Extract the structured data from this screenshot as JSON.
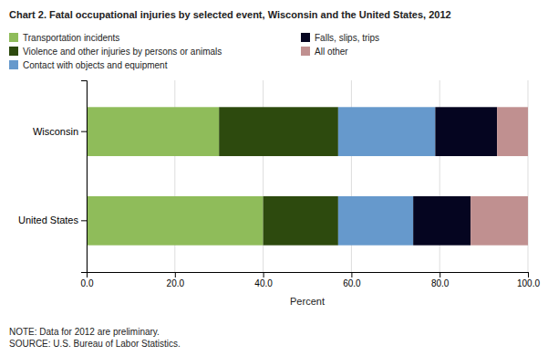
{
  "chart_data": {
    "type": "bar",
    "orientation": "horizontal",
    "stacked": true,
    "title": "Chart 2.  Fatal occupational injuries by selected event, Wisconsin and the United States, 2012",
    "categories": [
      "Wisconsin",
      "United States"
    ],
    "series": [
      {
        "name": "Transportation incidents",
        "values": [
          30.0,
          40.0
        ],
        "color": "#8fbc5a"
      },
      {
        "name": "Violence and other injuries by persons or animals",
        "values": [
          27.0,
          17.0
        ],
        "color": "#2d4a0e"
      },
      {
        "name": "Contact with objects and equipment",
        "values": [
          22.0,
          17.0
        ],
        "color": "#6699cc"
      },
      {
        "name": "Falls, slips, trips",
        "values": [
          14.0,
          13.0
        ],
        "color": "#050520"
      },
      {
        "name": "All other",
        "values": [
          7.0,
          13.0
        ],
        "color": "#c09090"
      }
    ],
    "xlabel": "Percent",
    "xlim": [
      0,
      100
    ],
    "xticks": [
      {
        "value": 0,
        "label": "0.0"
      },
      {
        "value": 20,
        "label": "20.0"
      },
      {
        "value": 40,
        "label": "40.0"
      },
      {
        "value": 60,
        "label": "60.0"
      },
      {
        "value": 80,
        "label": "80.0"
      },
      {
        "value": 100,
        "label": "100.0"
      }
    ],
    "grid": true,
    "annotations": [
      "NOTE: Data for 2012 are preliminary.\nSOURCE: U.S. Bureau of Labor Statistics."
    ]
  }
}
